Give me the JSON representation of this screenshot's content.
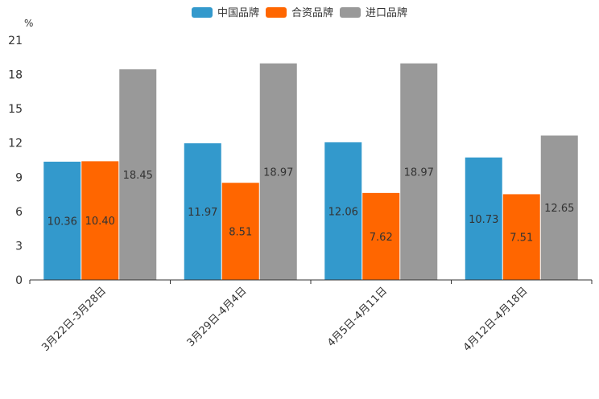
{
  "chart_data": {
    "type": "bar",
    "unit": "%",
    "ylim": [
      0,
      21
    ],
    "yticks": [
      0,
      3,
      6,
      9,
      12,
      15,
      18,
      21
    ],
    "categories": [
      "3月22日-3月28日",
      "3月29日-4月4日",
      "4月5日-4月11日",
      "4月12日-4月18日"
    ],
    "series": [
      {
        "name": "中国品牌",
        "color": "#3399cc",
        "values": [
          10.36,
          11.97,
          12.06,
          10.73
        ],
        "labels": [
          "10.36",
          "11.97",
          "12.06",
          "10.73"
        ]
      },
      {
        "name": "合资品牌",
        "color": "#ff6600",
        "values": [
          10.4,
          8.51,
          7.62,
          7.51
        ],
        "labels": [
          "10.40",
          "8.51",
          "7.62",
          "7.51"
        ]
      },
      {
        "name": "进口品牌",
        "color": "#999999",
        "values": [
          18.45,
          18.97,
          18.97,
          12.65
        ],
        "labels": [
          "18.45",
          "18.97",
          "18.97",
          "12.65"
        ]
      }
    ],
    "legend": "top-center",
    "grid": false
  }
}
